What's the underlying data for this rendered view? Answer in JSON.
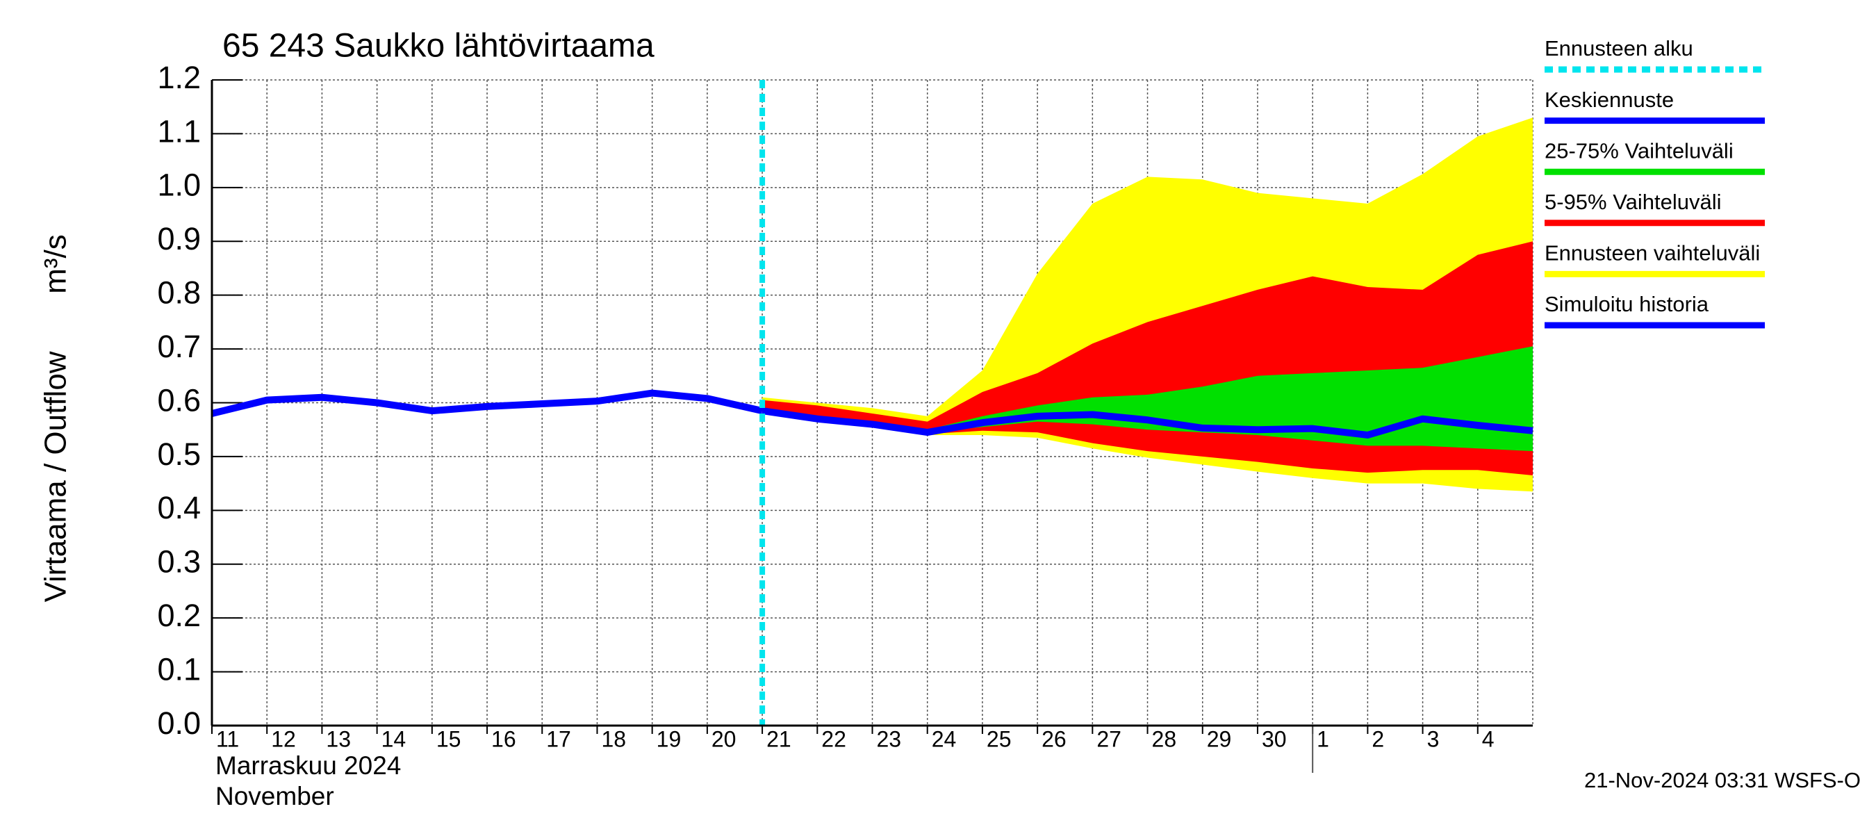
{
  "chart_data": {
    "type": "line",
    "title": "65 243 Saukko lähtövirtaama",
    "ylabel": "Virtaama / Outflow",
    "yunit": "m³/s",
    "month_labels": [
      "Marraskuu 2024",
      "November"
    ],
    "timestamp": "21-Nov-2024 03:31 WSFS-O",
    "grid": true,
    "legend": "right",
    "ylim": [
      0,
      1.2
    ],
    "yticks": [
      {
        "value": 0,
        "label": "0.0"
      },
      0.1,
      0.2,
      0.3,
      0.4,
      0.5,
      0.6,
      0.7,
      0.8,
      0.9,
      {
        "value": 1,
        "label": "1.0"
      },
      1.1,
      1.2
    ],
    "xlim": [
      "2024-11-11",
      "2024-12-05"
    ],
    "xticks": [
      {
        "value": "2024-11-11",
        "label": "11"
      },
      {
        "value": "2024-11-12",
        "label": "12"
      },
      {
        "value": "2024-11-13",
        "label": "13"
      },
      {
        "value": "2024-11-14",
        "label": "14"
      },
      {
        "value": "2024-11-15",
        "label": "15"
      },
      {
        "value": "2024-11-16",
        "label": "16"
      },
      {
        "value": "2024-11-17",
        "label": "17"
      },
      {
        "value": "2024-11-18",
        "label": "18"
      },
      {
        "value": "2024-11-19",
        "label": "19"
      },
      {
        "value": "2024-11-20",
        "label": "20"
      },
      {
        "value": "2024-11-21",
        "label": "21"
      },
      {
        "value": "2024-11-22",
        "label": "22"
      },
      {
        "value": "2024-11-23",
        "label": "23"
      },
      {
        "value": "2024-11-24",
        "label": "24"
      },
      {
        "value": "2024-11-25",
        "label": "25"
      },
      {
        "value": "2024-11-26",
        "label": "26"
      },
      {
        "value": "2024-11-27",
        "label": "27"
      },
      {
        "value": "2024-11-28",
        "label": "28"
      },
      {
        "value": "2024-11-29",
        "label": "29"
      },
      {
        "value": "2024-11-30",
        "label": "30"
      },
      {
        "value": "2024-12-01",
        "label": "1"
      },
      {
        "value": "2024-12-02",
        "label": "2"
      },
      {
        "value": "2024-12-03",
        "label": "3"
      },
      {
        "value": "2024-12-04",
        "label": "4"
      }
    ],
    "vlines": [
      {
        "name": "Ennusteen alku",
        "color": "#00e5ee",
        "x": "2024-11-21"
      }
    ],
    "series": [
      {
        "name": "Keskiennuste",
        "color": "#0000ff",
        "kind": "line",
        "x": [
          "2024-11-21",
          "2024-11-22",
          "2024-11-23",
          "2024-11-24",
          "2024-11-25",
          "2024-11-26",
          "2024-11-27",
          "2024-11-28",
          "2024-11-29",
          "2024-11-30",
          "2024-12-01",
          "2024-12-02",
          "2024-12-03",
          "2024-12-04",
          "2024-12-05"
        ],
        "values": [
          0.585,
          0.57,
          0.56,
          0.545,
          0.563,
          0.575,
          0.578,
          0.568,
          0.553,
          0.55,
          0.552,
          0.54,
          0.57,
          0.558,
          0.548
        ]
      },
      {
        "name": "25-75% Vaihteluväli",
        "color": "#00e000",
        "kind": "band",
        "x": [
          "2024-11-21",
          "2024-11-22",
          "2024-11-23",
          "2024-11-24",
          "2024-11-25",
          "2024-11-26",
          "2024-11-27",
          "2024-11-28",
          "2024-11-29",
          "2024-11-30",
          "2024-12-01",
          "2024-12-02",
          "2024-12-03",
          "2024-12-04",
          "2024-12-05"
        ],
        "values": [
          0.59,
          0.575,
          0.565,
          0.55,
          0.575,
          0.595,
          0.61,
          0.615,
          0.63,
          0.65,
          0.655,
          0.66,
          0.665,
          0.685,
          0.705
        ],
        "lower": [
          0.585,
          0.57,
          0.56,
          0.545,
          0.555,
          0.565,
          0.56,
          0.55,
          0.545,
          0.54,
          0.53,
          0.52,
          0.52,
          0.515,
          0.51
        ]
      },
      {
        "name": "5-95% Vaihteluväli",
        "color": "#ff0000",
        "kind": "band",
        "x": [
          "2024-11-21",
          "2024-11-22",
          "2024-11-23",
          "2024-11-24",
          "2024-11-25",
          "2024-11-26",
          "2024-11-27",
          "2024-11-28",
          "2024-11-29",
          "2024-11-30",
          "2024-12-01",
          "2024-12-02",
          "2024-12-03",
          "2024-12-04",
          "2024-12-05"
        ],
        "values": [
          0.605,
          0.595,
          0.58,
          0.565,
          0.62,
          0.655,
          0.71,
          0.75,
          0.78,
          0.81,
          0.835,
          0.815,
          0.81,
          0.875,
          0.9
        ],
        "lower": [
          0.585,
          0.57,
          0.557,
          0.542,
          0.548,
          0.545,
          0.525,
          0.51,
          0.5,
          0.49,
          0.478,
          0.47,
          0.475,
          0.475,
          0.465
        ]
      },
      {
        "name": "Ennusteen vaihteluväli",
        "color": "#ffff00",
        "kind": "band",
        "x": [
          "2024-11-21",
          "2024-11-22",
          "2024-11-23",
          "2024-11-24",
          "2024-11-25",
          "2024-11-26",
          "2024-11-27",
          "2024-11-28",
          "2024-11-29",
          "2024-11-30",
          "2024-12-01",
          "2024-12-02",
          "2024-12-03",
          "2024-12-04",
          "2024-12-05"
        ],
        "values": [
          0.61,
          0.6,
          0.59,
          0.575,
          0.66,
          0.84,
          0.97,
          1.02,
          1.015,
          0.99,
          0.98,
          0.97,
          1.025,
          1.095,
          1.13
        ],
        "lower": [
          0.585,
          0.57,
          0.555,
          0.54,
          0.54,
          0.535,
          0.515,
          0.498,
          0.485,
          0.472,
          0.46,
          0.45,
          0.45,
          0.44,
          0.435
        ]
      },
      {
        "name": "Simuloitu historia",
        "color": "#0000ff",
        "kind": "line",
        "x": [
          "2024-11-11",
          "2024-11-12",
          "2024-11-13",
          "2024-11-14",
          "2024-11-15",
          "2024-11-16",
          "2024-11-17",
          "2024-11-18",
          "2024-11-19",
          "2024-11-20",
          "2024-11-21"
        ],
        "values": [
          0.58,
          0.605,
          0.61,
          0.6,
          0.585,
          0.593,
          0.598,
          0.603,
          0.618,
          0.608,
          0.585
        ]
      }
    ]
  }
}
